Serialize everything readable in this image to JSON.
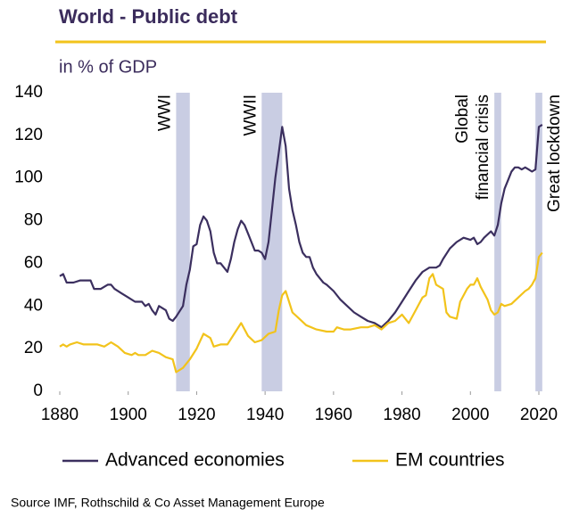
{
  "chart_data": {
    "type": "line",
    "title": "World - Public debt",
    "subtitle": "in % of GDP",
    "source": "Source IMF, Rothschild & Co Asset Management Europe",
    "xlim": [
      1880,
      2020
    ],
    "xticks": [
      1880,
      1900,
      1920,
      1940,
      1960,
      1980,
      2000,
      2020
    ],
    "ylim": [
      0,
      140
    ],
    "yticks": [
      0,
      20,
      40,
      60,
      80,
      100,
      120,
      140
    ],
    "grid": false,
    "legend": "bottom",
    "shaded_periods": [
      {
        "lines": [
          "WWI"
        ],
        "start": 1914,
        "end": 1918,
        "label_side": "left"
      },
      {
        "lines": [
          "WWII"
        ],
        "start": 1939,
        "end": 1945,
        "label_side": "left"
      },
      {
        "lines": [
          "Global",
          "financial  crisis"
        ],
        "start": 2007,
        "end": 2009,
        "label_side": "left"
      },
      {
        "lines": [
          "Great lockdown"
        ],
        "start": 2019,
        "end": 2021,
        "label_side": "right"
      }
    ],
    "shade_color": "#c9cde3",
    "series": [
      {
        "name": "Advanced economies",
        "color": "#3b2f5f",
        "x": [
          1880,
          1881,
          1882,
          1884,
          1886,
          1889,
          1890,
          1892,
          1894,
          1895,
          1896,
          1898,
          1900,
          1902,
          1904,
          1905,
          1906,
          1907,
          1908,
          1909,
          1911,
          1912,
          1913,
          1914,
          1916,
          1917,
          1918,
          1919,
          1920,
          1921,
          1922,
          1923,
          1924,
          1925,
          1926,
          1927,
          1928,
          1929,
          1930,
          1931,
          1932,
          1933,
          1934,
          1935,
          1936,
          1937,
          1938,
          1939,
          1940,
          1941,
          1942,
          1943,
          1944,
          1945,
          1946,
          1947,
          1948,
          1949,
          1950,
          1951,
          1952,
          1953,
          1954,
          1955,
          1956,
          1957,
          1958,
          1960,
          1962,
          1964,
          1966,
          1968,
          1970,
          1972,
          1974,
          1976,
          1978,
          1980,
          1982,
          1984,
          1986,
          1988,
          1990,
          1991,
          1992,
          1994,
          1996,
          1998,
          2000,
          2001,
          2002,
          2003,
          2004,
          2006,
          2007,
          2008,
          2009,
          2010,
          2011,
          2012,
          2013,
          2014,
          2015,
          2016,
          2017,
          2018,
          2019,
          2020,
          2021
        ],
        "values": [
          54,
          55,
          51,
          51,
          52,
          52,
          48,
          48,
          50,
          50,
          48,
          46,
          44,
          42,
          42,
          40,
          41,
          38,
          36,
          40,
          38,
          34,
          33,
          35,
          40,
          50,
          57,
          68,
          69,
          78,
          82,
          80,
          75,
          65,
          60,
          60,
          58,
          56,
          62,
          70,
          76,
          80,
          78,
          74,
          70,
          66,
          66,
          65,
          62,
          70,
          85,
          100,
          112,
          124,
          115,
          95,
          85,
          78,
          70,
          65,
          63,
          63,
          58,
          55,
          53,
          51,
          50,
          47,
          43,
          40,
          37,
          35,
          33,
          32,
          30,
          33,
          37,
          42,
          47,
          52,
          56,
          58,
          58,
          59,
          62,
          67,
          70,
          72,
          71,
          72,
          69,
          70,
          72,
          75,
          73,
          78,
          88,
          95,
          99,
          103,
          105,
          105,
          104,
          105,
          104,
          103,
          104,
          124,
          125
        ]
      },
      {
        "name": "EM countries",
        "color": "#f2c31b",
        "x": [
          1880,
          1881,
          1882,
          1883,
          1885,
          1887,
          1889,
          1891,
          1893,
          1895,
          1897,
          1899,
          1901,
          1902,
          1903,
          1905,
          1907,
          1909,
          1911,
          1913,
          1914,
          1915,
          1916,
          1918,
          1920,
          1922,
          1924,
          1925,
          1927,
          1929,
          1931,
          1933,
          1935,
          1937,
          1939,
          1941,
          1943,
          1944,
          1945,
          1946,
          1947,
          1948,
          1950,
          1952,
          1955,
          1958,
          1960,
          1961,
          1963,
          1965,
          1968,
          1970,
          1972,
          1974,
          1976,
          1978,
          1980,
          1982,
          1984,
          1986,
          1987,
          1988,
          1989,
          1990,
          1992,
          1993,
          1994,
          1996,
          1997,
          1999,
          2000,
          2001,
          2002,
          2003,
          2005,
          2006,
          2007,
          2008,
          2009,
          2010,
          2012,
          2014,
          2016,
          2017,
          2018,
          2019,
          2020,
          2021
        ],
        "values": [
          21,
          22,
          21,
          22,
          23,
          22,
          22,
          22,
          21,
          23,
          21,
          18,
          17,
          18,
          17,
          17,
          19,
          18,
          16,
          15,
          9,
          10,
          11,
          15,
          20,
          27,
          25,
          21,
          22,
          22,
          27,
          32,
          26,
          23,
          24,
          27,
          28,
          38,
          45,
          47,
          42,
          37,
          34,
          31,
          29,
          28,
          28,
          30,
          29,
          29,
          30,
          30,
          31,
          29,
          32,
          33,
          36,
          32,
          38,
          44,
          45,
          53,
          55,
          50,
          48,
          37,
          35,
          34,
          42,
          48,
          50,
          50,
          53,
          49,
          43,
          38,
          36,
          37,
          41,
          40,
          41,
          44,
          47,
          48,
          50,
          53,
          63,
          65
        ]
      }
    ]
  }
}
